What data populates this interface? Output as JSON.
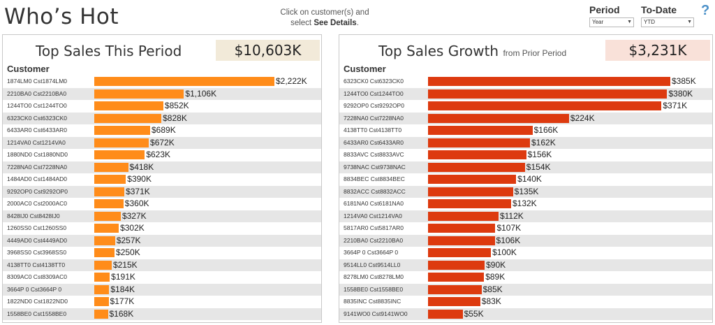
{
  "header": {
    "title": "Who’s Hot",
    "hint_line1": "Click on customer(s) and",
    "hint_line2_prefix": "select ",
    "hint_line2_bold": "See Details",
    "hint_line2_suffix": "."
  },
  "controls": {
    "period": {
      "label": "Period",
      "value": "Year"
    },
    "todate": {
      "label": "To-Date",
      "value": "YTD"
    },
    "help_label": "?"
  },
  "colors": {
    "sales_bar": "#ff8c1a",
    "growth_bar": "#dd3a0f",
    "sales_total_bg": "#f2ead9",
    "growth_total_bg": "#f9e1d9"
  },
  "sales": {
    "title": "Top Sales This Period",
    "total": "$10,603K",
    "column_header": "Customer",
    "rows": [
      {
        "label": "1874LM0  Cst1874LM0",
        "value": 2222,
        "display": "$2,222K"
      },
      {
        "label": "2210BA0  Cst2210BA0",
        "value": 1106,
        "display": "$1,106K"
      },
      {
        "label": "1244TO0  Cst1244TO0",
        "value": 852,
        "display": "$852K"
      },
      {
        "label": "6323CK0  Cst6323CK0",
        "value": 828,
        "display": "$828K"
      },
      {
        "label": "6433AR0  Cst6433AR0",
        "value": 689,
        "display": "$689K"
      },
      {
        "label": "1214VA0  Cst1214VA0",
        "value": 672,
        "display": "$672K"
      },
      {
        "label": "1880ND0  Cst1880ND0",
        "value": 623,
        "display": "$623K"
      },
      {
        "label": "7228NA0  Cst7228NA0",
        "value": 418,
        "display": "$418K"
      },
      {
        "label": "1484AD0  Cst1484AD0",
        "value": 390,
        "display": "$390K"
      },
      {
        "label": "9292OP0  Cst9292OP0",
        "value": 371,
        "display": "$371K"
      },
      {
        "label": "2000AC0  Cst2000AC0",
        "value": 360,
        "display": "$360K"
      },
      {
        "label": "8428IJ0  Cst8428IJ0",
        "value": 327,
        "display": "$327K"
      },
      {
        "label": "1260SS0  Cst1260SS0",
        "value": 302,
        "display": "$302K"
      },
      {
        "label": "4449AD0  Cst4449AD0",
        "value": 257,
        "display": "$257K"
      },
      {
        "label": "3968SS0  Cst3968SS0",
        "value": 250,
        "display": "$250K"
      },
      {
        "label": "4138TT0  Cst4138TT0",
        "value": 215,
        "display": "$215K"
      },
      {
        "label": "8309AC0  Cst8309AC0",
        "value": 191,
        "display": "$191K"
      },
      {
        "label": "3664P 0  Cst3664P 0",
        "value": 184,
        "display": "$184K"
      },
      {
        "label": "1822ND0  Cst1822ND0",
        "value": 177,
        "display": "$177K"
      },
      {
        "label": "1558BE0  Cst1558BE0",
        "value": 168,
        "display": "$168K"
      }
    ]
  },
  "growth": {
    "title": "Top Sales Growth",
    "subtitle": "from Prior Period",
    "total": "$3,231K",
    "column_header": "Customer",
    "rows": [
      {
        "label": "6323CK0  Cst6323CK0",
        "value": 385,
        "display": "$385K"
      },
      {
        "label": "1244TO0  Cst1244TO0",
        "value": 380,
        "display": "$380K"
      },
      {
        "label": "9292OP0  Cst9292OP0",
        "value": 371,
        "display": "$371K"
      },
      {
        "label": "7228NA0  Cst7228NA0",
        "value": 224,
        "display": "$224K"
      },
      {
        "label": "4138TT0  Cst4138TT0",
        "value": 166,
        "display": "$166K"
      },
      {
        "label": "6433AR0  Cst6433AR0",
        "value": 162,
        "display": "$162K"
      },
      {
        "label": "8833AVC  Cst8833AVC",
        "value": 156,
        "display": "$156K"
      },
      {
        "label": "9738NAC  Cst9738NAC",
        "value": 154,
        "display": "$154K"
      },
      {
        "label": "8834BEC  Cst8834BEC",
        "value": 140,
        "display": "$140K"
      },
      {
        "label": "8832ACC  Cst8832ACC",
        "value": 135,
        "display": "$135K"
      },
      {
        "label": "6181NA0  Cst6181NA0",
        "value": 132,
        "display": "$132K"
      },
      {
        "label": "1214VA0  Cst1214VA0",
        "value": 112,
        "display": "$112K"
      },
      {
        "label": "5817AR0  Cst5817AR0",
        "value": 107,
        "display": "$107K"
      },
      {
        "label": "2210BA0  Cst2210BA0",
        "value": 106,
        "display": "$106K"
      },
      {
        "label": "3664P 0  Cst3664P 0",
        "value": 100,
        "display": "$100K"
      },
      {
        "label": "9514LL0  Cst9514LL0",
        "value": 90,
        "display": "$90K"
      },
      {
        "label": "8278LM0  Cst8278LM0",
        "value": 89,
        "display": "$89K"
      },
      {
        "label": "1558BE0  Cst1558BE0",
        "value": 85,
        "display": "$85K"
      },
      {
        "label": "8835INC  Cst8835INC",
        "value": 83,
        "display": "$83K"
      },
      {
        "label": "9141WO0  Cst9141WO0",
        "value": 55,
        "display": "$55K"
      }
    ]
  }
}
